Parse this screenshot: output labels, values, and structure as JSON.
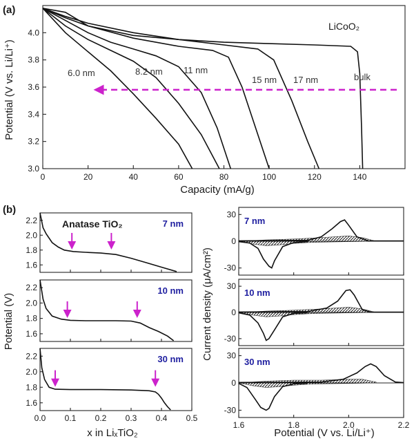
{
  "panel_a": {
    "label": "(a)",
    "ylabel": "Potential (V vs. Li/Li⁺)",
    "xlabel": "Capacity (mA/g)",
    "material": "LiCoO₂",
    "arrow_y": 3.58
  },
  "panel_b": {
    "label": "(b)",
    "left_ylabel": "Potential (V)",
    "left_xlabel": "x in LiₓTiO₂",
    "anatase": "Anatase TiO₂",
    "right_ylabel": "Current density (μA/cm²)",
    "right_xlabel": "Potential (V vs. Li/Li⁺)",
    "sizes": [
      "7 nm",
      "10 nm",
      "30 nm"
    ],
    "arrows_x": [
      [
        0.105,
        0.235
      ],
      [
        0.09,
        0.32
      ],
      [
        0.05,
        0.38
      ]
    ]
  },
  "chart_data": [
    {
      "type": "line",
      "panel": "(a)",
      "xlabel": "Capacity (mA/g)",
      "ylabel": "Potential (V vs. Li/Li⁺)",
      "xlim": [
        0,
        160
      ],
      "ylim": [
        3.0,
        4.2
      ],
      "xticks": [
        0,
        20,
        40,
        60,
        80,
        100,
        120,
        140
      ],
      "yticks": [
        3.0,
        3.2,
        3.4,
        3.6,
        3.8,
        4.0
      ],
      "series": [
        {
          "name": "6.0 nm",
          "x": [
            0,
            10,
            20,
            30,
            40,
            50,
            60,
            66
          ],
          "y": [
            4.18,
            4.0,
            3.86,
            3.72,
            3.55,
            3.37,
            3.18,
            3.0
          ]
        },
        {
          "name": "8.2 nm",
          "x": [
            0,
            10,
            20,
            30,
            40,
            50,
            60,
            70,
            78
          ],
          "y": [
            4.18,
            4.05,
            3.95,
            3.87,
            3.79,
            3.67,
            3.48,
            3.25,
            3.0
          ]
        },
        {
          "name": "11 nm",
          "x": [
            0,
            10,
            20,
            30,
            40,
            50,
            60,
            70,
            77,
            83
          ],
          "y": [
            4.18,
            4.09,
            4.0,
            3.93,
            3.88,
            3.83,
            3.75,
            3.56,
            3.3,
            3.0
          ]
        },
        {
          "name": "15 nm",
          "x": [
            0,
            10,
            20,
            40,
            60,
            75,
            82,
            88,
            95,
            100
          ],
          "y": [
            4.18,
            4.11,
            4.05,
            3.96,
            3.9,
            3.87,
            3.82,
            3.6,
            3.25,
            3.0
          ]
        },
        {
          "name": "17 nm",
          "x": [
            0,
            10,
            20,
            40,
            60,
            80,
            95,
            102,
            110,
            117,
            122
          ],
          "y": [
            4.18,
            4.12,
            4.07,
            4.0,
            3.95,
            3.91,
            3.88,
            3.8,
            3.5,
            3.2,
            3.0
          ]
        },
        {
          "name": "bulk",
          "x": [
            0,
            10,
            20,
            40,
            60,
            80,
            100,
            120,
            136,
            139,
            140,
            140.8,
            141.3
          ],
          "y": [
            4.18,
            4.15,
            4.05,
            3.98,
            3.95,
            3.93,
            3.92,
            3.91,
            3.9,
            3.86,
            3.7,
            3.3,
            3.0
          ]
        }
      ]
    },
    {
      "type": "line",
      "panel": "(b) left",
      "xlabel": "x in LiₓTiO₂",
      "ylabel": "Potential (V)",
      "xlim": [
        0,
        0.5
      ],
      "xticks": [
        0.0,
        0.1,
        0.2,
        0.3,
        0.4,
        0.5
      ],
      "yticks": [
        1.6,
        1.8,
        2.0,
        2.2
      ],
      "series": [
        {
          "name": "7 nm",
          "x": [
            0,
            0.01,
            0.02,
            0.04,
            0.06,
            0.08,
            0.11,
            0.15,
            0.2,
            0.25,
            0.3,
            0.35,
            0.4,
            0.45
          ],
          "y": [
            2.3,
            2.1,
            2.02,
            1.9,
            1.84,
            1.8,
            1.78,
            1.77,
            1.76,
            1.74,
            1.69,
            1.63,
            1.57,
            1.51
          ]
        },
        {
          "name": "10 nm",
          "x": [
            0,
            0.01,
            0.02,
            0.04,
            0.07,
            0.1,
            0.15,
            0.2,
            0.25,
            0.3,
            0.33,
            0.36,
            0.39,
            0.42,
            0.44
          ],
          "y": [
            2.3,
            2.05,
            1.93,
            1.83,
            1.79,
            1.775,
            1.77,
            1.77,
            1.77,
            1.765,
            1.74,
            1.68,
            1.63,
            1.57,
            1.51
          ]
        },
        {
          "name": "30 nm",
          "x": [
            0,
            0.006,
            0.015,
            0.03,
            0.05,
            0.1,
            0.2,
            0.3,
            0.36,
            0.38,
            0.39,
            0.4,
            0.41,
            0.42,
            0.43
          ],
          "y": [
            2.3,
            2.05,
            1.9,
            1.8,
            1.775,
            1.77,
            1.77,
            1.765,
            1.755,
            1.74,
            1.71,
            1.66,
            1.6,
            1.55,
            1.51
          ]
        }
      ]
    },
    {
      "type": "line",
      "panel": "(b) right",
      "xlabel": "Potential (V vs. Li/Li⁺)",
      "ylabel": "Current density (μA/cm²)",
      "xlim": [
        1.6,
        2.2
      ],
      "xticks": [
        1.6,
        1.8,
        2.0,
        2.2
      ],
      "yticks": [
        -30,
        0,
        30
      ],
      "series": [
        {
          "name": "7 nm",
          "anodic": {
            "x": [
              1.6,
              1.85,
              1.9,
              1.94,
              1.97,
              1.985,
              2.0,
              2.03,
              2.07,
              2.2
            ],
            "y": [
              0.5,
              1,
              5,
              14,
              22,
              24,
              18,
              5,
              0.5,
              0.3
            ]
          },
          "cathodic": {
            "x": [
              1.6,
              1.64,
              1.67,
              1.69,
              1.71,
              1.72,
              1.73,
              1.76,
              1.8,
              1.85
            ],
            "y": [
              -0.5,
              -2,
              -8,
              -20,
              -28,
              -30,
              -22,
              -6,
              -1.5,
              -0.5
            ]
          }
        },
        {
          "name": "10 nm",
          "anodic": {
            "x": [
              1.6,
              1.85,
              1.92,
              1.96,
              1.99,
              2.005,
              2.02,
              2.05,
              2.08,
              2.2
            ],
            "y": [
              0.5,
              1,
              5,
              13,
              25,
              26,
              20,
              3,
              0.5,
              0.3
            ]
          },
          "cathodic": {
            "x": [
              1.6,
              1.64,
              1.67,
              1.69,
              1.7,
              1.71,
              1.73,
              1.76,
              1.8,
              1.85
            ],
            "y": [
              -0.5,
              -3,
              -12,
              -24,
              -32,
              -30,
              -20,
              -5,
              -1,
              -0.5
            ]
          }
        },
        {
          "name": "30 nm",
          "anodic": {
            "x": [
              1.6,
              1.9,
              1.98,
              2.03,
              2.06,
              2.08,
              2.1,
              2.13,
              2.17,
              2.2
            ],
            "y": [
              0.5,
              1,
              4,
              11,
              18,
              21,
              18,
              8,
              1,
              0.3
            ]
          },
          "cathodic": {
            "x": [
              1.6,
              1.63,
              1.66,
              1.68,
              1.7,
              1.71,
              1.73,
              1.76,
              1.8,
              1.85
            ],
            "y": [
              -0.5,
              -5,
              -18,
              -27,
              -30,
              -28,
              -15,
              -4,
              -1,
              -0.5
            ]
          }
        }
      ]
    }
  ]
}
